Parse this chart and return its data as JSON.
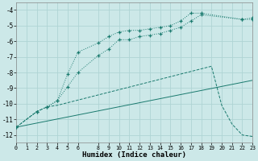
{
  "xlabel": "Humidex (Indice chaleur)",
  "bg_color": "#cce8e8",
  "grid_color": "#afd4d4",
  "line_color": "#1a7a6e",
  "xlim": [
    0,
    23
  ],
  "ylim": [
    -12.5,
    -3.5
  ],
  "xticks": [
    0,
    1,
    2,
    3,
    4,
    5,
    6,
    8,
    9,
    10,
    11,
    12,
    13,
    14,
    15,
    16,
    17,
    18,
    19,
    20,
    21,
    22,
    23
  ],
  "yticks": [
    -4,
    -5,
    -6,
    -7,
    -8,
    -9,
    -10,
    -11,
    -12
  ],
  "line1_x": [
    0,
    2,
    3,
    4,
    5,
    6,
    8,
    9,
    10,
    11,
    12,
    13,
    14,
    15,
    16,
    17,
    18,
    22,
    23
  ],
  "line1_y": [
    -11.5,
    -10.5,
    -10.2,
    -9.8,
    -8.9,
    -8.0,
    -6.9,
    -6.5,
    -5.9,
    -5.9,
    -5.7,
    -5.6,
    -5.5,
    -5.3,
    -5.1,
    -4.7,
    -4.3,
    -4.6,
    -4.6
  ],
  "line2_x": [
    0,
    2,
    3,
    4,
    5,
    6,
    8,
    9,
    10,
    11,
    12,
    13,
    14,
    15,
    16,
    17,
    18,
    22,
    23
  ],
  "line2_y": [
    -11.5,
    -10.5,
    -10.2,
    -9.8,
    -8.1,
    -6.7,
    -6.1,
    -5.7,
    -5.4,
    -5.3,
    -5.3,
    -5.2,
    -5.1,
    -5.0,
    -4.7,
    -4.2,
    -4.2,
    -4.6,
    -4.5
  ],
  "line3_x": [
    0,
    2,
    3,
    4,
    19,
    20,
    21,
    22,
    23
  ],
  "line3_y": [
    -11.5,
    -10.5,
    -10.2,
    -10.1,
    -7.6,
    -10.1,
    -11.3,
    -12.0,
    -12.1
  ],
  "line4_x": [
    0,
    23
  ],
  "line4_y": [
    -11.5,
    -8.5
  ]
}
